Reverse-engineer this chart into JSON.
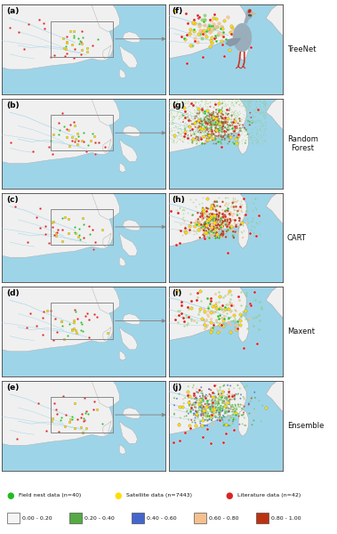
{
  "rows": 5,
  "row_labels_left": [
    "(a)",
    "(b)",
    "(c)",
    "(d)",
    "(e)"
  ],
  "row_labels_right": [
    "(f)",
    "(g)",
    "(h)",
    "(i)",
    "(j)"
  ],
  "model_names": [
    "TreeNet",
    "Random\nForest",
    "CART",
    "Maxent",
    "Ensemble"
  ],
  "sea_color": "#9ed4e8",
  "land_color": "#f0f0f0",
  "land_edge_color": "#aaaaaa",
  "river_color": "#9ed4e8",
  "border_color": "#666666",
  "panel_border": "#444444",
  "legend_dot_colors": {
    "field": "#22bb22",
    "satellite": "#ffdd00",
    "literature": "#dd2222"
  },
  "colorbar_colors": [
    "#f5f5f5",
    "#55aa44",
    "#4466cc",
    "#f5c090",
    "#bb3311"
  ],
  "colorbar_labels": [
    "0.00 - 0.20",
    "0.20 - 0.40",
    "0.40 - 0.60",
    "0.60 - 0.80",
    "0.80 - 1.00"
  ],
  "text_color": "#111111",
  "figure_bg": "#ffffff",
  "crane_body_color": "#8899bb",
  "crane_leg_color": "#cc3322",
  "crane_red_color": "#cc2211",
  "prediction_colors": {
    "low": "#88cc66",
    "med_low": "#55aa44",
    "med": "#4466cc",
    "med_high": "#f5c090",
    "high": "#bb3311"
  }
}
